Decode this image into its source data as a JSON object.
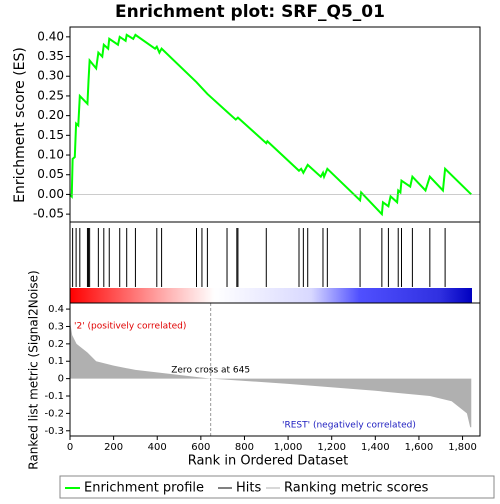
{
  "chart_data": [
    {
      "type": "line",
      "title": "Enrichment plot: SRF_Q5_01",
      "ylabel": "Enrichment score (ES)",
      "name": "Enrichment profile",
      "color": "#00ff00",
      "xlim": [
        0,
        1880
      ],
      "ylim": [
        -0.07,
        0.425
      ],
      "yticks": [
        {
          "value": 0.4,
          "label": "0.40"
        },
        0.35,
        {
          "value": 0.3,
          "label": "0.30"
        },
        0.25,
        {
          "value": 0.2,
          "label": "0.20"
        },
        0.15,
        {
          "value": 0.1,
          "label": "0.10"
        },
        0.05,
        {
          "value": 0,
          "label": "0.00"
        },
        -0.05
      ],
      "x": [
        0,
        8,
        12,
        22,
        28,
        38,
        45,
        80,
        85,
        90,
        120,
        130,
        148,
        155,
        175,
        180,
        220,
        228,
        255,
        260,
        290,
        300,
        390,
        398,
        410,
        420,
        580,
        605,
        630,
        720,
        760,
        770,
        900,
        905,
        1050,
        1060,
        1070,
        1090,
        1150,
        1160,
        1165,
        1180,
        1330,
        1335,
        1430,
        1435,
        1460,
        1470,
        1500,
        1505,
        1515,
        1520,
        1560,
        1570,
        1630,
        1650,
        1710,
        1720,
        1840
      ],
      "values": [
        0,
        -0.005,
        0.09,
        0.095,
        0.18,
        0.175,
        0.25,
        0.23,
        0.29,
        0.34,
        0.32,
        0.36,
        0.35,
        0.38,
        0.37,
        0.395,
        0.38,
        0.4,
        0.39,
        0.405,
        0.395,
        0.405,
        0.37,
        0.375,
        0.36,
        0.37,
        0.285,
        0.27,
        0.255,
        0.21,
        0.19,
        0.195,
        0.13,
        0.135,
        0.06,
        0.065,
        0.055,
        0.075,
        0.045,
        0.055,
        0.045,
        0.065,
        -0.015,
        0.005,
        -0.05,
        -0.02,
        -0.03,
        -0.005,
        -0.02,
        0.01,
        0.005,
        0.035,
        0.02,
        0.045,
        0.01,
        0.045,
        0.01,
        0.065,
        0
      ],
      "hits_name": "Hits",
      "hits": [
        12,
        28,
        45,
        80,
        85,
        90,
        130,
        155,
        180,
        228,
        260,
        300,
        398,
        420,
        580,
        605,
        630,
        720,
        765,
        770,
        900,
        1050,
        1070,
        1090,
        1160,
        1180,
        1330,
        1430,
        1460,
        1505,
        1520,
        1570,
        1650,
        1720
      ]
    },
    {
      "type": "area",
      "name": "Ranking metric scores",
      "color": "#b0b0b0",
      "ylabel": "Ranked list metric (Signal2Noise)",
      "xlabel": "Rank in Ordered Dataset",
      "xlim": [
        0,
        1880
      ],
      "ylim": [
        -0.33,
        0.435
      ],
      "xticks": [
        0,
        200,
        400,
        600,
        800,
        {
          "value": 1000,
          "label": "1,000"
        },
        {
          "value": 1200,
          "label": "1,200"
        },
        {
          "value": 1400,
          "label": "1,400"
        },
        {
          "value": 1600,
          "label": "1,600"
        },
        {
          "value": 1800,
          "label": "1,800"
        }
      ],
      "yticks": [
        0.4,
        0.3,
        0.2,
        0.1,
        0,
        -0.1,
        -0.2,
        -0.3
      ],
      "x": [
        0,
        10,
        30,
        80,
        120,
        200,
        300,
        645,
        1000,
        1400,
        1650,
        1750,
        1820,
        1835,
        1840
      ],
      "values": [
        0.33,
        0.25,
        0.2,
        0.15,
        0.1,
        0.075,
        0.05,
        0,
        -0.03,
        -0.07,
        -0.1,
        -0.13,
        -0.2,
        -0.28,
        -0.28
      ],
      "zero_cross": 645,
      "zero_cross_label": "Zero cross at 645",
      "pos_label": "'2' (positively correlated)",
      "neg_label": "'REST' (negatively correlated)"
    }
  ]
}
